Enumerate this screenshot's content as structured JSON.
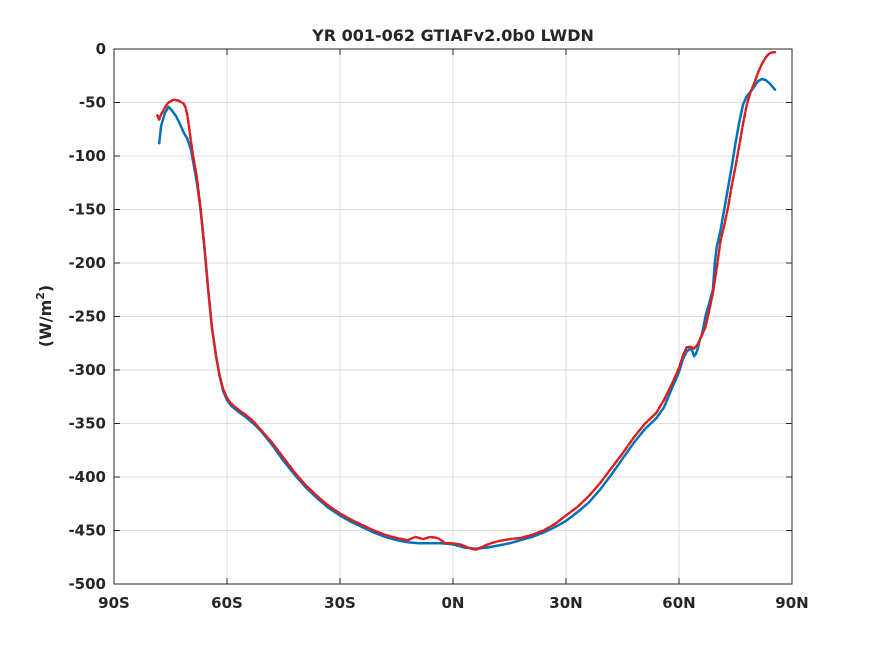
{
  "chart_data": {
    "type": "line",
    "title": "YR 001-062 GTIAFv2.0b0 LWDN",
    "xlabel": "",
    "ylabel": "(W/m",
    "ylabel_superscript": "2",
    "ylabel_close": ")",
    "xlim": [
      -90,
      90
    ],
    "ylim": [
      -500,
      0
    ],
    "xticks": [
      -90,
      -60,
      -30,
      0,
      30,
      60,
      90
    ],
    "xtick_labels": [
      "90S",
      "60S",
      "30S",
      "0N",
      "30N",
      "60N",
      "90N"
    ],
    "yticks": [
      0,
      -50,
      -100,
      -150,
      -200,
      -250,
      -300,
      -350,
      -400,
      -450,
      -500
    ],
    "ytick_labels": [
      "0",
      "-50",
      "-100",
      "-150",
      "-200",
      "-250",
      "-300",
      "-350",
      "-400",
      "-450",
      "-500"
    ],
    "grid": true,
    "legend": false,
    "series": [
      {
        "color": "#0072BD",
        "style": "solid",
        "x": [
          -78,
          -77.5,
          -76.5,
          -75.5,
          -74.5,
          -73.5,
          -72.5,
          -71.5,
          -70.5,
          -69.5,
          -69,
          -68,
          -67,
          -66,
          -65,
          -64,
          -63,
          -62,
          -61,
          -60,
          -59,
          -58,
          -57,
          -55,
          -53,
          -51,
          -48,
          -45,
          -42,
          -39,
          -36,
          -33,
          -30,
          -27,
          -24,
          -21,
          -18,
          -15,
          -12,
          -9,
          -6,
          -3,
          0,
          3,
          6,
          9,
          12,
          15,
          18,
          21,
          24,
          27,
          30,
          33,
          36,
          39,
          42,
          45,
          48,
          51,
          54,
          56,
          58,
          60,
          61,
          62,
          63,
          63.5,
          64,
          64.5,
          65,
          65.5,
          66,
          66.5,
          67,
          68,
          69,
          69.5,
          70,
          71,
          72,
          73,
          74,
          75,
          76,
          77,
          78,
          79,
          80,
          81,
          82,
          83,
          84,
          85,
          85.5
        ],
        "y": [
          -88,
          -72,
          -60,
          -54,
          -58,
          -63,
          -70,
          -78,
          -84,
          -95,
          -105,
          -125,
          -150,
          -185,
          -225,
          -260,
          -285,
          -305,
          -320,
          -328,
          -333,
          -336,
          -339,
          -344,
          -350,
          -357,
          -370,
          -385,
          -398,
          -410,
          -420,
          -429,
          -436,
          -442,
          -447,
          -452,
          -456,
          -459,
          -461,
          -462,
          -462,
          -462,
          -463,
          -466,
          -467,
          -466,
          -464,
          -462,
          -459,
          -456,
          -452,
          -447,
          -441,
          -433,
          -424,
          -412,
          -398,
          -383,
          -368,
          -355,
          -345,
          -335,
          -318,
          -302,
          -290,
          -283,
          -280,
          -282,
          -287,
          -285,
          -280,
          -272,
          -268,
          -260,
          -250,
          -238,
          -225,
          -200,
          -185,
          -170,
          -150,
          -130,
          -110,
          -88,
          -68,
          -52,
          -44,
          -40,
          -35,
          -30,
          -28,
          -29,
          -32,
          -36,
          -38
        ]
      },
      {
        "color": "#D92121",
        "style": "dashed",
        "x": [
          -78.5,
          -78,
          -77.5,
          -77,
          -76.5,
          -76,
          -75.5,
          -75,
          -74.5,
          -74,
          -73.5,
          -73,
          -72.5,
          -72,
          -71.5,
          -71,
          -70.5,
          -70,
          -69.5,
          -69,
          -68,
          -67,
          -66,
          -65,
          -64,
          -63,
          -62,
          -61,
          -60,
          -59,
          -58,
          -57,
          -55,
          -53,
          -51,
          -48,
          -45,
          -42,
          -39,
          -36,
          -33,
          -30,
          -27,
          -24,
          -21,
          -18,
          -15,
          -12,
          -10,
          -8,
          -6,
          -4,
          -2,
          0,
          2,
          4,
          6,
          8,
          10,
          12,
          15,
          18,
          21,
          24,
          27,
          30,
          33,
          36,
          39,
          42,
          45,
          48,
          51,
          54,
          56,
          58,
          60,
          61,
          62,
          63,
          64,
          65,
          66,
          67,
          68,
          69,
          70,
          71,
          72,
          73,
          74,
          75,
          76,
          77,
          78,
          79,
          80,
          81,
          82,
          83,
          84,
          85,
          85.5
        ],
        "y": [
          -62,
          -66,
          -61,
          -58,
          -55,
          -52,
          -50,
          -49,
          -48,
          -47,
          -48,
          -48,
          -49,
          -50,
          -51,
          -55,
          -62,
          -75,
          -88,
          -100,
          -120,
          -150,
          -185,
          -225,
          -260,
          -285,
          -305,
          -318,
          -326,
          -331,
          -334,
          -337,
          -342,
          -348,
          -356,
          -368,
          -382,
          -396,
          -408,
          -418,
          -427,
          -434,
          -440,
          -445,
          -450,
          -454,
          -457,
          -459,
          -456,
          -458,
          -456,
          -457,
          -462,
          -462,
          -463,
          -466,
          -468,
          -465,
          -462,
          -460,
          -458,
          -457,
          -454,
          -450,
          -444,
          -436,
          -428,
          -418,
          -406,
          -392,
          -378,
          -363,
          -350,
          -340,
          -328,
          -314,
          -298,
          -287,
          -279,
          -278,
          -280,
          -276,
          -268,
          -260,
          -245,
          -228,
          -205,
          -180,
          -165,
          -148,
          -128,
          -110,
          -90,
          -70,
          -52,
          -40,
          -32,
          -22,
          -14,
          -8,
          -4,
          -3,
          -3
        ]
      }
    ]
  }
}
